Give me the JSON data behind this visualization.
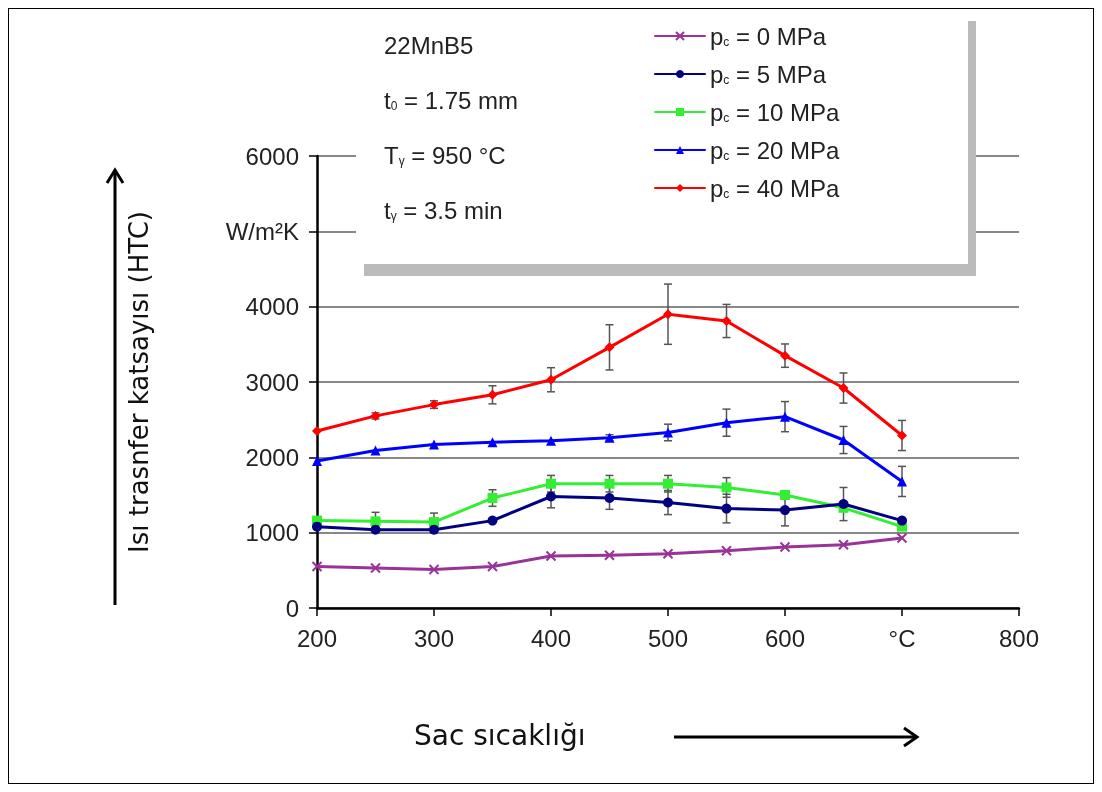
{
  "chart_data": {
    "type": "line",
    "xlabel": "Sac sıcaklığı",
    "ylabel": "Isı trasnfer katsayısı (HTC)",
    "annotations": [
      "22MnB5",
      "t$_{0}$ = 1.75 mm",
      "T$_{γ}$ = 950 °C",
      "t$_{γ}$ = 3.5 min"
    ],
    "x": [
      200,
      250,
      300,
      350,
      400,
      450,
      500,
      550,
      600,
      650,
      700
    ],
    "xlim": [
      200,
      800
    ],
    "xticks": [
      200,
      300,
      400,
      500,
      600,
      {
        "value": 700,
        "label": "°C"
      },
      800
    ],
    "ylim": [
      0,
      6000
    ],
    "yticks": [
      0,
      1000,
      2000,
      3000,
      4000,
      {
        "value": 5000,
        "label": "W/m²K"
      },
      6000
    ],
    "grid": "y",
    "legend": "top right",
    "line_style": "solid",
    "series": [
      {
        "name": "p$_{c}$ = 0 MPa",
        "color": "#993399",
        "marker": "cross",
        "values": [
          550,
          530,
          510,
          550,
          690,
          700,
          720,
          760,
          810,
          840,
          930
        ]
      },
      {
        "name": "p$_{c}$ = 5 MPa",
        "color": "#000080",
        "marker": "circle",
        "values": [
          1080,
          1040,
          1040,
          1160,
          1480,
          1460,
          1400,
          1320,
          1300,
          1380,
          1160
        ],
        "errors": [
          null,
          null,
          null,
          null,
          150,
          150,
          160,
          190,
          210,
          220,
          null
        ]
      },
      {
        "name": "p$_{c}$ = 10 MPa",
        "color": "#33ee33",
        "marker": "square",
        "values": [
          1160,
          1150,
          1140,
          1460,
          1650,
          1650,
          1650,
          1600,
          1500,
          1330,
          1080
        ],
        "errors": [
          null,
          120,
          120,
          110,
          110,
          110,
          110,
          130,
          null,
          null,
          null
        ]
      },
      {
        "name": "p$_{c}$ = 20 MPa",
        "color": "#0000ff",
        "marker": "triangle",
        "values": [
          1950,
          2090,
          2170,
          2200,
          2220,
          2260,
          2330,
          2460,
          2540,
          2230,
          1680
        ],
        "errors": [
          null,
          null,
          null,
          null,
          null,
          40,
          110,
          180,
          200,
          180,
          200
        ]
      },
      {
        "name": "p$_{c}$ = 40 MPa",
        "color": "#ff0000",
        "marker": "diamond",
        "values": [
          2350,
          2550,
          2700,
          2830,
          3030,
          3460,
          3900,
          3810,
          3350,
          2920,
          2290
        ],
        "errors": [
          null,
          40,
          50,
          120,
          160,
          300,
          400,
          220,
          155,
          200,
          200
        ]
      }
    ]
  }
}
